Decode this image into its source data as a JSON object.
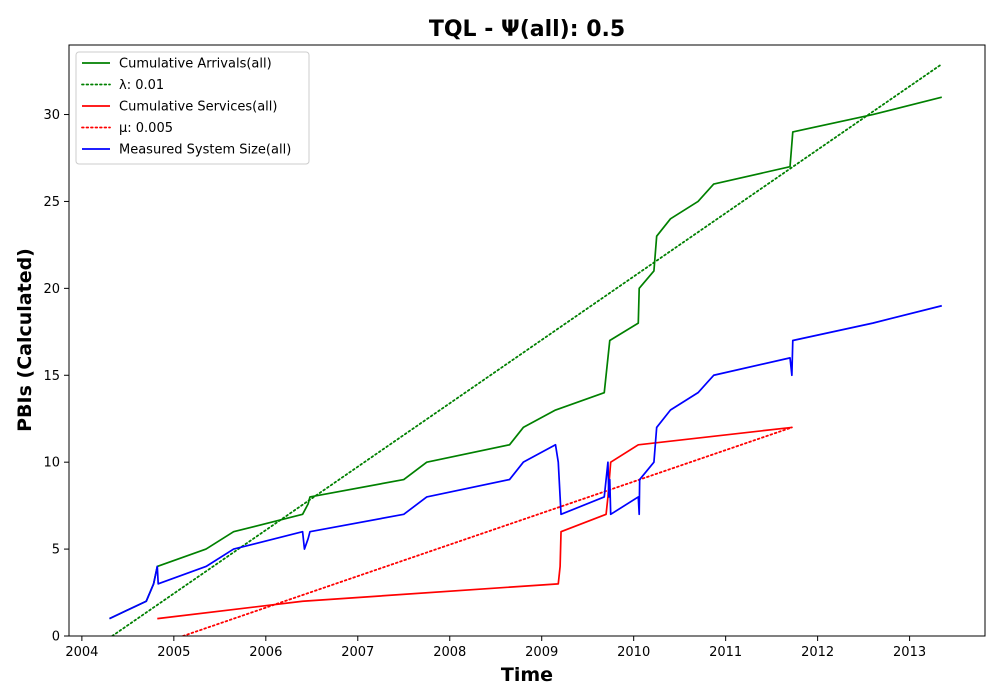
{
  "chart_data": {
    "type": "line",
    "title": "TQL -  Ψ(all): 0.5",
    "xlabel": "Time",
    "ylabel": "PBIs (Calculated)",
    "xlim": [
      2003.86,
      2013.82
    ],
    "ylim": [
      0,
      34
    ],
    "x_ticks": [
      2004,
      2005,
      2006,
      2007,
      2008,
      2009,
      2010,
      2011,
      2012,
      2013
    ],
    "y_ticks": [
      0,
      5,
      10,
      15,
      20,
      25,
      30
    ],
    "grid": false,
    "legend_position": "top-left",
    "series": [
      {
        "name": "Cumulative Arrivals(all)",
        "color": "#008000",
        "style": "solid",
        "points": [
          [
            2004.3,
            1
          ],
          [
            2004.7,
            2
          ],
          [
            2004.78,
            3
          ],
          [
            2004.82,
            4
          ],
          [
            2005.35,
            5
          ],
          [
            2005.65,
            6
          ],
          [
            2006.4,
            7
          ],
          [
            2006.46,
            7.6
          ],
          [
            2006.48,
            8
          ],
          [
            2007.5,
            9
          ],
          [
            2007.75,
            10
          ],
          [
            2008.65,
            11
          ],
          [
            2008.8,
            12
          ],
          [
            2009.15,
            13
          ],
          [
            2009.68,
            14
          ],
          [
            2009.7,
            15
          ],
          [
            2009.74,
            17
          ],
          [
            2010.05,
            18
          ],
          [
            2010.06,
            20
          ],
          [
            2010.22,
            21
          ],
          [
            2010.25,
            23
          ],
          [
            2010.4,
            24
          ],
          [
            2010.7,
            25
          ],
          [
            2010.87,
            26
          ],
          [
            2011.7,
            27
          ],
          [
            2011.73,
            29
          ],
          [
            2012.6,
            30
          ],
          [
            2013.35,
            31
          ]
        ]
      },
      {
        "name": "λ: 0.01",
        "color": "#008000",
        "style": "dotted",
        "points": [
          [
            2004.33,
            0
          ],
          [
            2013.35,
            32.9
          ]
        ]
      },
      {
        "name": "Cumulative Services(all)",
        "color": "#ff0000",
        "style": "solid",
        "points": [
          [
            2004.82,
            1
          ],
          [
            2006.4,
            2
          ],
          [
            2009.18,
            3
          ],
          [
            2009.2,
            4
          ],
          [
            2009.21,
            6
          ],
          [
            2009.7,
            7
          ],
          [
            2009.72,
            8
          ],
          [
            2009.75,
            10
          ],
          [
            2010.05,
            11
          ],
          [
            2011.72,
            12
          ]
        ]
      },
      {
        "name": "μ: 0.005",
        "color": "#ff0000",
        "style": "dotted",
        "points": [
          [
            2005.1,
            0
          ],
          [
            2011.72,
            12
          ]
        ]
      },
      {
        "name": "Measured System Size(all)",
        "color": "#0000ff",
        "style": "solid",
        "points": [
          [
            2004.3,
            1
          ],
          [
            2004.7,
            2
          ],
          [
            2004.78,
            3
          ],
          [
            2004.82,
            4
          ],
          [
            2004.83,
            3
          ],
          [
            2005.35,
            4
          ],
          [
            2005.65,
            5
          ],
          [
            2006.4,
            6
          ],
          [
            2006.42,
            5
          ],
          [
            2006.46,
            5.6
          ],
          [
            2006.48,
            6
          ],
          [
            2007.5,
            7
          ],
          [
            2007.75,
            8
          ],
          [
            2008.65,
            9
          ],
          [
            2008.8,
            10
          ],
          [
            2009.15,
            11
          ],
          [
            2009.18,
            10
          ],
          [
            2009.19,
            9
          ],
          [
            2009.2,
            8
          ],
          [
            2009.21,
            7
          ],
          [
            2009.68,
            8
          ],
          [
            2009.7,
            9
          ],
          [
            2009.72,
            10
          ],
          [
            2009.73,
            8
          ],
          [
            2009.74,
            9
          ],
          [
            2009.75,
            7
          ],
          [
            2010.05,
            8
          ],
          [
            2010.06,
            7
          ],
          [
            2010.065,
            9
          ],
          [
            2010.22,
            10
          ],
          [
            2010.25,
            12
          ],
          [
            2010.4,
            13
          ],
          [
            2010.7,
            14
          ],
          [
            2010.87,
            15
          ],
          [
            2011.7,
            16
          ],
          [
            2011.72,
            15
          ],
          [
            2011.73,
            17
          ],
          [
            2012.6,
            18
          ],
          [
            2013.35,
            19
          ]
        ]
      }
    ]
  }
}
